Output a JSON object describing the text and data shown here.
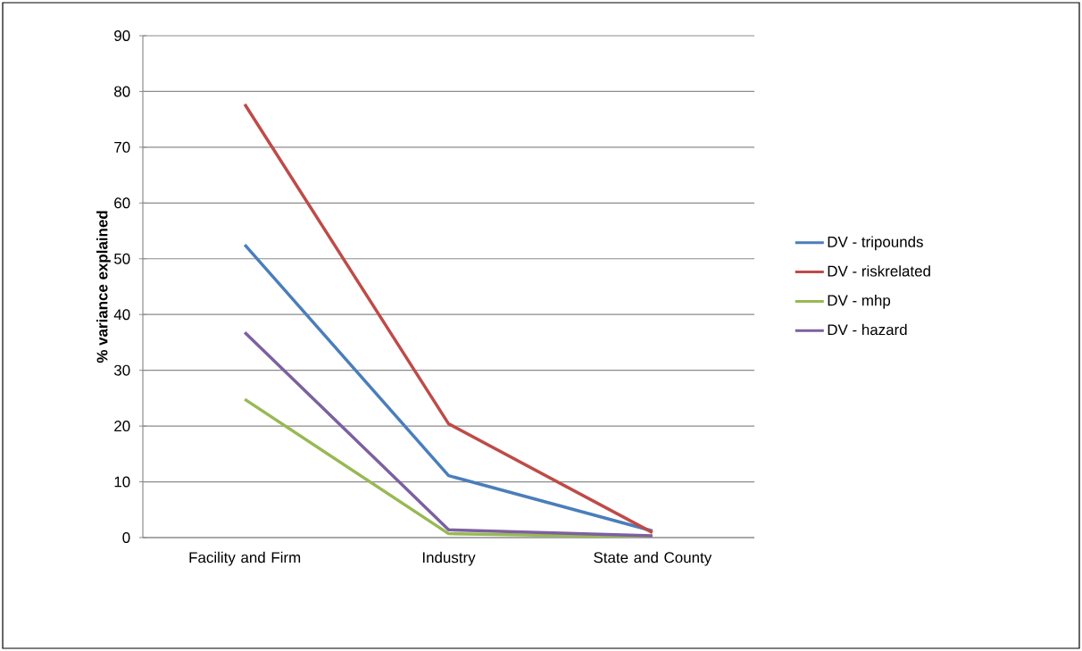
{
  "chart_data": {
    "type": "line",
    "ylabel": "% variance explained",
    "categories": [
      "Facility and Firm",
      "Industry",
      "State and County"
    ],
    "series": [
      {
        "name": "DV - tripounds",
        "color": "#4a7ebb",
        "values": [
          52.5,
          11.1,
          1.2
        ]
      },
      {
        "name": "DV - riskrelated",
        "color": "#be4b48",
        "values": [
          77.7,
          20.4,
          0.9
        ]
      },
      {
        "name": "DV - mhp",
        "color": "#98b954",
        "values": [
          24.8,
          0.7,
          0.1
        ]
      },
      {
        "name": "DV - hazard",
        "color": "#7d60a0",
        "values": [
          36.8,
          1.4,
          0.3
        ]
      }
    ],
    "ylim": [
      0,
      90
    ],
    "yticks": [
      0,
      10,
      20,
      30,
      40,
      50,
      60,
      70,
      80,
      90
    ],
    "grid": "y",
    "legend": "right",
    "marker": "none",
    "line_style": "solid"
  }
}
